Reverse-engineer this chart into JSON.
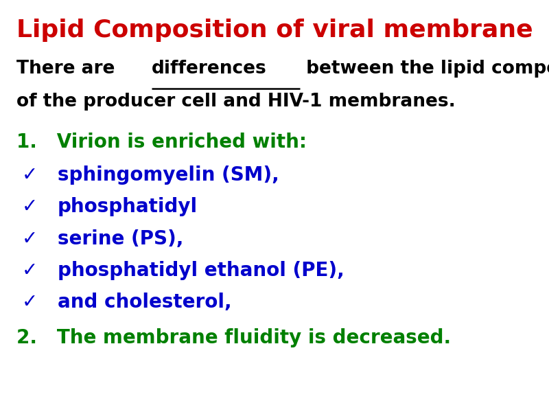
{
  "title": "Lipid Composition of viral membrane",
  "title_color": "#CC0000",
  "title_fontsize": 26,
  "title_fontweight": "bold",
  "bg_color": "#FFFFFF",
  "intro_line2": "of the producer cell and HIV-1 membranes.",
  "intro_fontsize": 19,
  "point1_label": "1.   Virion is enriched with:",
  "point1_color": "#008000",
  "point1_fontsize": 20,
  "bullet_items": [
    "sphingomyelin (SM),",
    "phosphatidyl",
    "serine (PS),",
    "phosphatidyl ethanol (PE),",
    "and cholesterol,"
  ],
  "bullet_color": "#0000CC",
  "bullet_fontsize": 20,
  "bullet_check": "✓",
  "point2_label": "2.   The membrane fluidity is decreased.",
  "point2_color": "#008000",
  "point2_fontsize": 20
}
